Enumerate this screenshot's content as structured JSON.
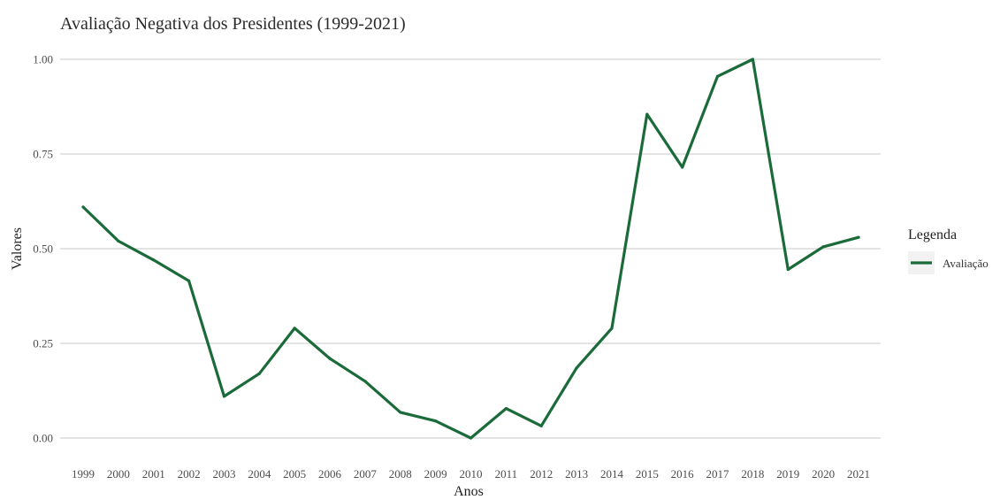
{
  "chart_data": {
    "type": "line",
    "title": "Avaliação Negativa dos Presidentes (1999-2021)",
    "xlabel": "Anos",
    "ylabel": "Valores",
    "x": [
      "1999",
      "2000",
      "2001",
      "2002",
      "2003",
      "2004",
      "2005",
      "2006",
      "2007",
      "2008",
      "2009",
      "2010",
      "2011",
      "2012",
      "2013",
      "2014",
      "2015",
      "2016",
      "2017",
      "2018",
      "2019",
      "2020",
      "2021"
    ],
    "series": [
      {
        "name": "Avaliação",
        "color": "#1b6b3a",
        "values": [
          0.61,
          0.52,
          0.47,
          0.415,
          0.11,
          0.17,
          0.29,
          0.21,
          0.15,
          0.068,
          0.045,
          0.0,
          0.078,
          0.032,
          0.185,
          0.29,
          0.855,
          0.715,
          0.955,
          1.0,
          0.445,
          0.505,
          0.53
        ]
      }
    ],
    "ylim": [
      0,
      1
    ],
    "yticks": [
      "0.00",
      "0.25",
      "0.50",
      "0.75",
      "1.00"
    ],
    "ytick_values": [
      0,
      0.25,
      0.5,
      0.75,
      1.0
    ],
    "grid": true,
    "legend": {
      "title": "Legenda",
      "placement": "right"
    }
  }
}
